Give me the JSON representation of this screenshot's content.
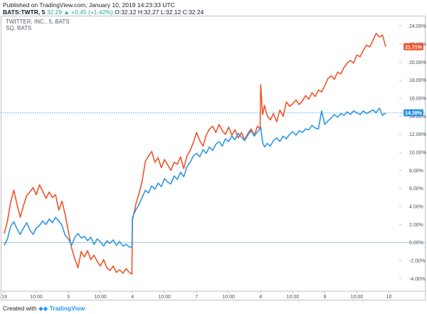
{
  "header": {
    "published": "Published on TradingView.com, January 10, 2019 14:23:33 UTC",
    "symbol": "BATS:TWTR, 5",
    "quote": "32.29 ▲ +0.45 (+1.42%) O:32.12 H:32.27 L:32.12 C:32.24",
    "quote_change": "32.29 ▲ +0.45 (+1.42%)",
    "quote_ohlc": "O:32.12 H:32.27 L:32.12 C:32.24"
  },
  "legend": {
    "main_series": "TWITTER, INC., 5, BATS",
    "compare_series": "SQ, BATS"
  },
  "footer": {
    "created_with": "Created with",
    "brand": "TradingView"
  },
  "colors": {
    "twtr_line": "#f0542a",
    "sq_line": "#2e96e4",
    "twtr_label_bg": "#f0542a",
    "sq_label_bg": "#2e96e4",
    "zero_line": "#9db7d4",
    "crosshair": "#2e96e4",
    "axis_text": "#4a4f5a"
  },
  "chart_data": {
    "type": "line",
    "title": "",
    "xlabel": "",
    "ylabel": "",
    "y_unit": "%",
    "ylim": [
      -5,
      25
    ],
    "y_ticks": [
      "24.00%",
      "22.00%",
      "20.00%",
      "18.00%",
      "16.00%",
      "14.00%",
      "12.00%",
      "10.00%",
      "8.00%",
      "6.00%",
      "4.00%",
      "2.00%",
      "0.00%",
      "-2.00%",
      "-4.00%"
    ],
    "y_tick_values": [
      24,
      22,
      20,
      18,
      16,
      14,
      12,
      10,
      8,
      6,
      4,
      2,
      0,
      -2,
      -4
    ],
    "x_ticks": [
      "19",
      "10:00",
      "3",
      "10:00",
      "4",
      "10:00",
      "7",
      "10:00",
      "8",
      "10:00",
      "9",
      "10:00",
      "10"
    ],
    "x_tick_positions": [
      0,
      0.5,
      1,
      1.5,
      2,
      2.5,
      3,
      3.5,
      4,
      4.5,
      5,
      5.5,
      6
    ],
    "xlim": [
      0,
      6.15
    ],
    "last_value_labels": [
      {
        "series": "TWTR",
        "text": "21.71%",
        "value": 21.71
      },
      {
        "series": "SQ",
        "text": "14.38%",
        "value": 14.38
      }
    ],
    "crosshair_value": 14.38,
    "series": [
      {
        "name": "TWTR",
        "x": [
          0,
          0.05,
          0.1,
          0.15,
          0.2,
          0.25,
          0.3,
          0.35,
          0.4,
          0.45,
          0.5,
          0.55,
          0.6,
          0.65,
          0.7,
          0.75,
          0.8,
          0.85,
          0.9,
          0.95,
          1.0,
          1.05,
          1.1,
          1.15,
          1.2,
          1.25,
          1.3,
          1.35,
          1.4,
          1.45,
          1.5,
          1.55,
          1.6,
          1.65,
          1.7,
          1.75,
          1.8,
          1.85,
          1.9,
          1.95,
          1.99,
          2.0,
          2.05,
          2.1,
          2.15,
          2.2,
          2.25,
          2.3,
          2.35,
          2.4,
          2.45,
          2.5,
          2.55,
          2.6,
          2.65,
          2.7,
          2.75,
          2.8,
          2.85,
          2.9,
          2.95,
          3.0,
          3.05,
          3.1,
          3.15,
          3.2,
          3.25,
          3.3,
          3.35,
          3.4,
          3.45,
          3.5,
          3.55,
          3.6,
          3.65,
          3.7,
          3.75,
          3.8,
          3.85,
          3.9,
          3.95,
          3.99,
          4.0,
          4.03,
          4.06,
          4.1,
          4.15,
          4.2,
          4.25,
          4.3,
          4.35,
          4.4,
          4.45,
          4.5,
          4.55,
          4.6,
          4.65,
          4.7,
          4.75,
          4.8,
          4.85,
          4.9,
          4.95,
          5.0,
          5.05,
          5.1,
          5.15,
          5.2,
          5.25,
          5.3,
          5.35,
          5.4,
          5.45,
          5.5,
          5.55,
          5.6,
          5.65,
          5.7,
          5.75,
          5.8,
          5.85,
          5.9,
          5.95
        ],
        "values": [
          1.0,
          2.4,
          4.5,
          5.8,
          4.2,
          2.8,
          4.1,
          5.2,
          5.6,
          6.1,
          5.3,
          6.4,
          5.7,
          4.9,
          5.6,
          5.0,
          5.3,
          3.6,
          4.6,
          3.1,
          1.2,
          -0.6,
          -1.8,
          -2.8,
          -1.0,
          -1.6,
          -0.9,
          -1.9,
          -1.4,
          -2.1,
          -2.6,
          -1.9,
          -2.8,
          -3.1,
          -2.6,
          -3.3,
          -3.0,
          -3.4,
          -2.9,
          -3.3,
          -3.5,
          2.5,
          4.2,
          5.4,
          6.8,
          9.0,
          9.6,
          10.1,
          8.9,
          9.4,
          8.3,
          9.2,
          8.6,
          8.0,
          8.9,
          8.7,
          9.5,
          8.2,
          9.6,
          10.2,
          11.1,
          12.2,
          11.3,
          10.7,
          11.9,
          12.6,
          12.9,
          12.2,
          13.1,
          12.4,
          12.0,
          12.8,
          11.9,
          12.5,
          11.6,
          12.2,
          11.4,
          12.1,
          12.6,
          11.9,
          12.9,
          12.6,
          17.5,
          14.2,
          15.2,
          14.1,
          13.6,
          14.3,
          13.4,
          14.7,
          14.0,
          15.6,
          15.1,
          15.4,
          15.8,
          15.3,
          15.7,
          16.3,
          15.9,
          16.6,
          16.2,
          16.9,
          16.7,
          17.4,
          18.2,
          18.5,
          18.1,
          18.9,
          18.7,
          19.4,
          19.9,
          20.2,
          19.9,
          20.8,
          20.6,
          21.3,
          21.9,
          21.7,
          22.4,
          23.2,
          22.8,
          23.0,
          21.71
        ]
      },
      {
        "name": "SQ",
        "x": [
          0,
          0.05,
          0.1,
          0.15,
          0.2,
          0.25,
          0.3,
          0.35,
          0.4,
          0.45,
          0.5,
          0.55,
          0.6,
          0.65,
          0.7,
          0.75,
          0.8,
          0.85,
          0.9,
          0.95,
          1.0,
          1.05,
          1.1,
          1.15,
          1.2,
          1.25,
          1.3,
          1.35,
          1.4,
          1.45,
          1.5,
          1.55,
          1.6,
          1.65,
          1.7,
          1.75,
          1.8,
          1.85,
          1.9,
          1.95,
          1.99,
          2.0,
          2.05,
          2.1,
          2.15,
          2.2,
          2.25,
          2.3,
          2.35,
          2.4,
          2.45,
          2.5,
          2.55,
          2.6,
          2.65,
          2.7,
          2.75,
          2.8,
          2.85,
          2.9,
          2.95,
          3.0,
          3.05,
          3.1,
          3.15,
          3.2,
          3.25,
          3.3,
          3.35,
          3.4,
          3.45,
          3.5,
          3.55,
          3.6,
          3.65,
          3.7,
          3.75,
          3.8,
          3.85,
          3.9,
          3.95,
          3.99,
          4.0,
          4.03,
          4.06,
          4.1,
          4.15,
          4.2,
          4.25,
          4.3,
          4.35,
          4.4,
          4.45,
          4.5,
          4.55,
          4.6,
          4.65,
          4.7,
          4.75,
          4.8,
          4.85,
          4.9,
          4.95,
          5.0,
          5.05,
          5.1,
          5.15,
          5.2,
          5.25,
          5.3,
          5.35,
          5.4,
          5.45,
          5.5,
          5.55,
          5.6,
          5.65,
          5.7,
          5.75,
          5.8,
          5.85,
          5.9,
          5.95
        ],
        "values": [
          -0.3,
          0.4,
          1.8,
          2.3,
          1.5,
          0.9,
          1.6,
          2.2,
          1.4,
          0.9,
          1.6,
          1.9,
          2.4,
          2.0,
          2.6,
          2.2,
          2.8,
          2.4,
          1.9,
          0.8,
          0.4,
          -0.3,
          0.6,
          1.0,
          0.5,
          0.7,
          0.2,
          0.6,
          -0.2,
          0.4,
          0.1,
          -0.4,
          0.2,
          -0.1,
          0.3,
          -0.3,
          0.1,
          -0.4,
          -0.2,
          -0.5,
          -0.5,
          2.8,
          3.6,
          4.2,
          5.0,
          5.8,
          5.5,
          6.3,
          5.9,
          6.6,
          6.2,
          7.1,
          6.7,
          6.5,
          7.4,
          7.0,
          7.8,
          7.3,
          8.4,
          8.9,
          9.6,
          9.9,
          9.5,
          10.3,
          9.9,
          10.6,
          10.2,
          10.9,
          11.2,
          10.7,
          11.5,
          11.2,
          11.8,
          11.4,
          12.1,
          11.7,
          11.3,
          11.9,
          12.4,
          11.8,
          12.3,
          12.6,
          12.8,
          11.1,
          10.6,
          11.0,
          10.7,
          11.3,
          11.6,
          11.2,
          11.8,
          11.5,
          12.0,
          12.3,
          11.9,
          12.4,
          12.2,
          12.6,
          12.5,
          13.0,
          12.7,
          12.6,
          14.6,
          13.1,
          13.5,
          13.8,
          14.2,
          13.9,
          14.3,
          14.1,
          14.5,
          14.2,
          14.6,
          14.4,
          14.2,
          14.6,
          14.3,
          14.5,
          14.7,
          14.4,
          14.9,
          14.1,
          14.38
        ]
      }
    ]
  }
}
